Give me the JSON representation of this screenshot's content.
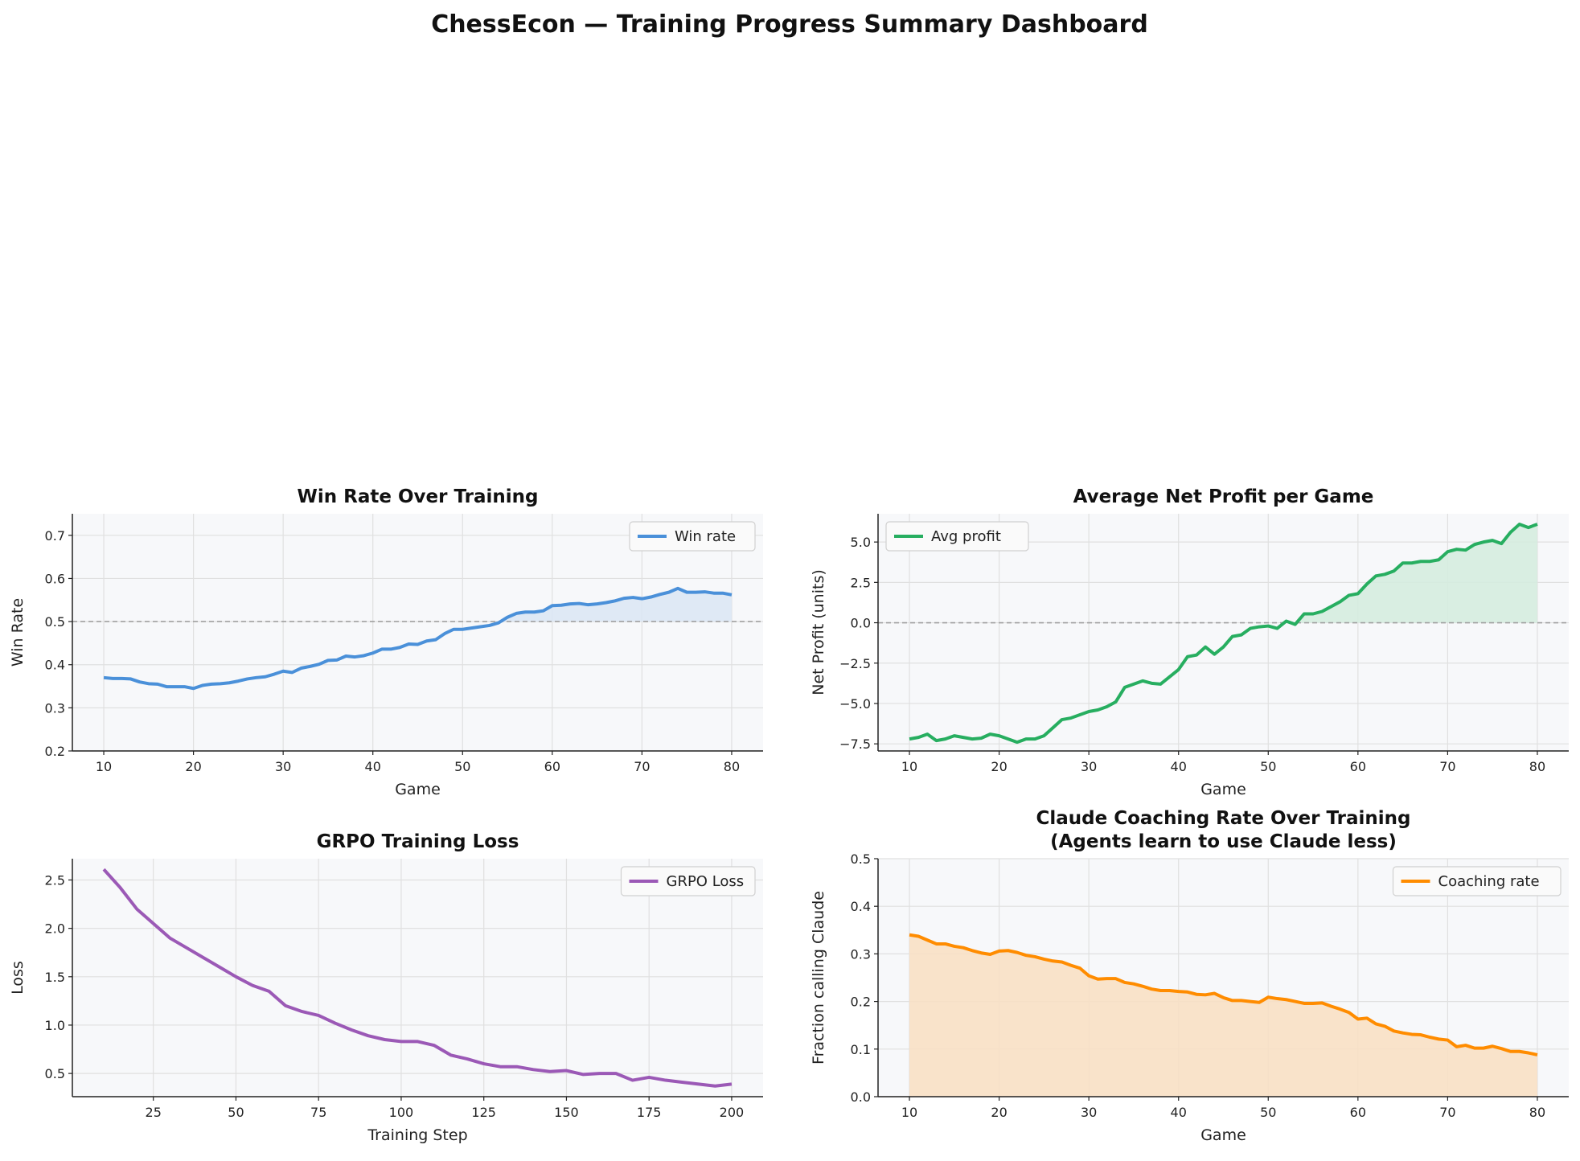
{
  "title": "ChessEcon — Training Progress Summary Dashboard",
  "chart_data": [
    {
      "type": "line",
      "title": "Win Rate Over Training",
      "xlabel": "Game",
      "ylabel": "Win Rate",
      "xlim": [
        6.5,
        83.5
      ],
      "ylim": [
        0.2,
        0.75
      ],
      "xticks": [
        10,
        20,
        30,
        40,
        50,
        60,
        70,
        80
      ],
      "yticks": [
        0.2,
        0.3,
        0.4,
        0.5,
        0.6,
        0.7
      ],
      "ytick_labels": [
        "0.2",
        "0.3",
        "0.4",
        "0.5",
        "0.6",
        "0.7"
      ],
      "grid": true,
      "legend": "upper-right",
      "reference_line": 0.5,
      "fill": "above-reference",
      "color": "#4a90d9",
      "fill_color": "#dce7f4",
      "series": [
        {
          "name": "Win rate",
          "x_start": 10,
          "values": [
            0.37,
            0.368,
            0.368,
            0.367,
            0.36,
            0.356,
            0.355,
            0.349,
            0.349,
            0.349,
            0.345,
            0.352,
            0.355,
            0.356,
            0.358,
            0.362,
            0.367,
            0.37,
            0.372,
            0.378,
            0.385,
            0.382,
            0.392,
            0.396,
            0.401,
            0.41,
            0.411,
            0.42,
            0.418,
            0.421,
            0.427,
            0.436,
            0.436,
            0.44,
            0.448,
            0.447,
            0.455,
            0.458,
            0.472,
            0.482,
            0.482,
            0.485,
            0.488,
            0.491,
            0.497,
            0.51,
            0.519,
            0.522,
            0.522,
            0.525,
            0.537,
            0.538,
            0.541,
            0.542,
            0.539,
            0.541,
            0.544,
            0.548,
            0.554,
            0.556,
            0.553,
            0.557,
            0.563,
            0.568,
            0.577,
            0.568,
            0.568,
            0.569,
            0.566,
            0.566,
            0.562
          ]
        }
      ]
    },
    {
      "type": "line",
      "title": "Average Net Profit per Game",
      "xlabel": "Game",
      "ylabel": "Net Profit (units)",
      "xlim": [
        6.5,
        83.5
      ],
      "ylim": [
        -7.94,
        6.75
      ],
      "xticks": [
        10,
        20,
        30,
        40,
        50,
        60,
        70,
        80
      ],
      "yticks": [
        -7.5,
        -5,
        -2.5,
        0,
        2.5,
        5
      ],
      "ytick_labels": [
        "−7.5",
        "−5.0",
        "−2.5",
        "0.0",
        "2.5",
        "5.0"
      ],
      "grid": true,
      "legend": "upper-left",
      "reference_line": 0,
      "fill": "above-reference",
      "color": "#27ae60",
      "fill_color": "#d5ecdf",
      "series": [
        {
          "name": "Avg profit",
          "x_start": 10,
          "values": [
            -7.2,
            -7.1,
            -6.9,
            -7.3,
            -7.2,
            -7.0,
            -7.1,
            -7.2,
            -7.15,
            -6.9,
            -7.0,
            -7.2,
            -7.4,
            -7.2,
            -7.2,
            -7.0,
            -6.5,
            -6.0,
            -5.9,
            -5.7,
            -5.5,
            -5.4,
            -5.2,
            -4.9,
            -4.0,
            -3.8,
            -3.6,
            -3.75,
            -3.8,
            -3.35,
            -2.9,
            -2.1,
            -2.0,
            -1.5,
            -1.95,
            -1.5,
            -0.85,
            -0.75,
            -0.35,
            -0.25,
            -0.2,
            -0.35,
            0.1,
            -0.1,
            0.55,
            0.55,
            0.7,
            1.0,
            1.3,
            1.7,
            1.8,
            2.4,
            2.9,
            3.0,
            3.2,
            3.7,
            3.7,
            3.8,
            3.8,
            3.9,
            4.4,
            4.55,
            4.5,
            4.85,
            5.0,
            5.1,
            4.9,
            5.6,
            6.1,
            5.9,
            6.1
          ]
        }
      ]
    },
    {
      "type": "line",
      "title": "GRPO Training Loss",
      "xlabel": "Training Step",
      "ylabel": "Loss",
      "xlim": [
        0.5,
        209.5
      ],
      "ylim": [
        0.26,
        2.72
      ],
      "xticks": [
        25,
        50,
        75,
        100,
        125,
        150,
        175,
        200
      ],
      "yticks": [
        0.5,
        1.0,
        1.5,
        2.0,
        2.5
      ],
      "ytick_labels": [
        "0.5",
        "1.0",
        "1.5",
        "2.0",
        "2.5"
      ],
      "grid": true,
      "legend": "upper-right",
      "color": "#9b59b6",
      "series": [
        {
          "name": "GRPO Loss",
          "x": [
            10,
            15,
            20,
            25,
            30,
            35,
            40,
            45,
            50,
            55,
            60,
            65,
            70,
            75,
            80,
            85,
            90,
            95,
            100,
            105,
            110,
            115,
            120,
            125,
            130,
            135,
            140,
            145,
            150,
            155,
            160,
            165,
            170,
            175,
            180,
            185,
            190,
            195,
            200
          ],
          "values": [
            2.61,
            2.42,
            2.2,
            2.05,
            1.9,
            1.8,
            1.7,
            1.6,
            1.5,
            1.41,
            1.35,
            1.2,
            1.14,
            1.1,
            1.02,
            0.95,
            0.89,
            0.85,
            0.83,
            0.83,
            0.79,
            0.69,
            0.65,
            0.6,
            0.57,
            0.57,
            0.54,
            0.52,
            0.53,
            0.49,
            0.5,
            0.5,
            0.43,
            0.46,
            0.43,
            0.41,
            0.39,
            0.37,
            0.39
          ]
        }
      ]
    },
    {
      "type": "area",
      "title": "Claude Coaching Rate Over Training",
      "subtitle": "(Agents learn to use Claude less)",
      "xlabel": "Game",
      "ylabel": "Fraction calling Claude",
      "xlim": [
        6.5,
        83.5
      ],
      "ylim": [
        0,
        0.5
      ],
      "xticks": [
        10,
        20,
        30,
        40,
        50,
        60,
        70,
        80
      ],
      "yticks": [
        0,
        0.1,
        0.2,
        0.3,
        0.4,
        0.5
      ],
      "ytick_labels": [
        "0.0",
        "0.1",
        "0.2",
        "0.3",
        "0.4",
        "0.5"
      ],
      "grid": true,
      "legend": "upper-right",
      "fill": "to-zero",
      "color": "#ff8c00",
      "fill_color": "#f8e0c4",
      "series": [
        {
          "name": "Coaching rate",
          "x_start": 10,
          "values": [
            0.34,
            0.337,
            0.329,
            0.321,
            0.321,
            0.316,
            0.313,
            0.307,
            0.302,
            0.299,
            0.306,
            0.307,
            0.303,
            0.297,
            0.294,
            0.289,
            0.285,
            0.283,
            0.276,
            0.27,
            0.254,
            0.247,
            0.248,
            0.248,
            0.24,
            0.237,
            0.232,
            0.226,
            0.223,
            0.223,
            0.221,
            0.22,
            0.215,
            0.214,
            0.217,
            0.208,
            0.202,
            0.202,
            0.2,
            0.198,
            0.209,
            0.206,
            0.204,
            0.2,
            0.196,
            0.196,
            0.197,
            0.19,
            0.184,
            0.177,
            0.163,
            0.165,
            0.153,
            0.148,
            0.138,
            0.134,
            0.131,
            0.13,
            0.125,
            0.121,
            0.119,
            0.105,
            0.108,
            0.102,
            0.102,
            0.106,
            0.101,
            0.095,
            0.095,
            0.092,
            0.088
          ]
        }
      ]
    }
  ]
}
